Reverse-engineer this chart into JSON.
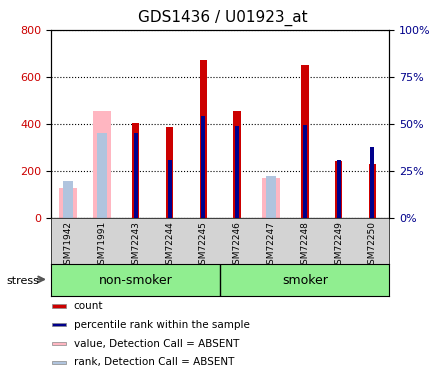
{
  "title": "GDS1436 / U01923_at",
  "samples": [
    "GSM71942",
    "GSM71991",
    "GSM72243",
    "GSM72244",
    "GSM72245",
    "GSM72246",
    "GSM72247",
    "GSM72248",
    "GSM72249",
    "GSM72250"
  ],
  "groups": [
    {
      "label": "non-smoker",
      "start": 0,
      "end": 5,
      "color": "#90ee90"
    },
    {
      "label": "smoker",
      "start": 5,
      "end": 10,
      "color": "#90ee90"
    }
  ],
  "count_values": [
    0,
    0,
    405,
    385,
    670,
    455,
    0,
    650,
    240,
    230
  ],
  "rank_values": [
    0,
    0,
    360,
    245,
    435,
    390,
    0,
    395,
    245,
    300
  ],
  "absent_value_values": [
    125,
    455,
    0,
    0,
    0,
    0,
    170,
    0,
    0,
    0
  ],
  "absent_rank_values": [
    155,
    360,
    0,
    0,
    0,
    0,
    175,
    0,
    0,
    0
  ],
  "ylim_left": [
    0,
    800
  ],
  "ylim_right": [
    0,
    100
  ],
  "yticks_left": [
    0,
    200,
    400,
    600,
    800
  ],
  "yticks_right": [
    0,
    25,
    50,
    75,
    100
  ],
  "ytick_labels_right": [
    "0%",
    "25%",
    "50%",
    "75%",
    "100%"
  ],
  "bar_width": 0.35,
  "count_color": "#cc0000",
  "rank_color": "#00008b",
  "absent_value_color": "#ffb6c1",
  "absent_rank_color": "#b0c4de",
  "grid_color": "#000000",
  "bg_color": "#ffffff",
  "stress_label": "stress",
  "legend_items": [
    {
      "label": "count",
      "color": "#cc0000"
    },
    {
      "label": "percentile rank within the sample",
      "color": "#00008b"
    },
    {
      "label": "value, Detection Call = ABSENT",
      "color": "#ffb6c1"
    },
    {
      "label": "rank, Detection Call = ABSENT",
      "color": "#b0c4de"
    }
  ]
}
